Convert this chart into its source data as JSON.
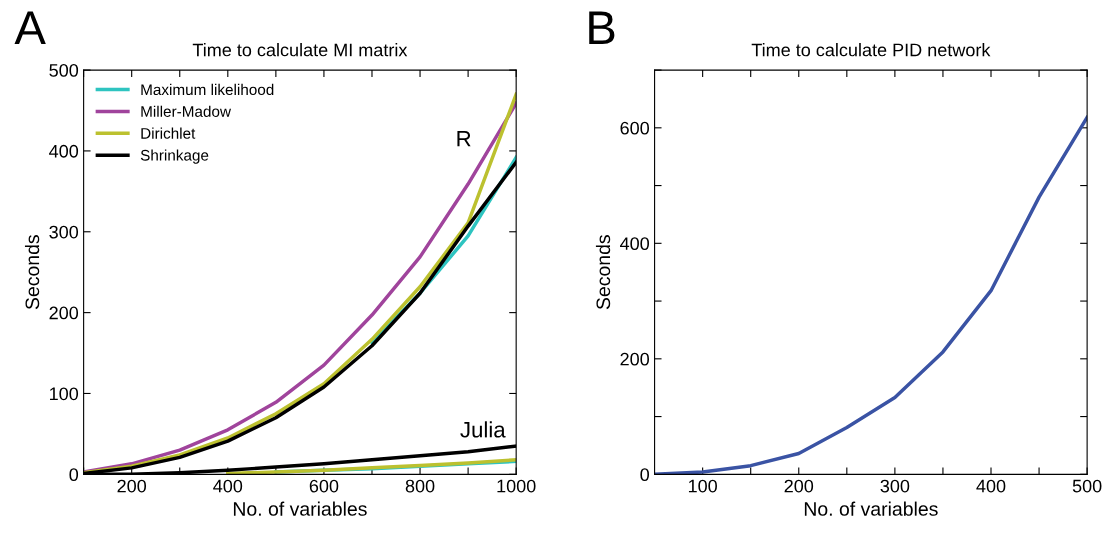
{
  "chart_data": [
    {
      "type": "line",
      "title": "Time to calculate MI matrix",
      "xlabel": "No. of variables",
      "ylabel": "Seconds",
      "x": [
        100,
        200,
        300,
        400,
        500,
        600,
        700,
        800,
        900,
        1000
      ],
      "series": [
        {
          "name": "Maximum likelihood",
          "color": "#2ec4c0",
          "values": [
            null,
            null,
            null,
            null,
            null,
            null,
            163,
            224,
            295,
            392
          ]
        },
        {
          "name": "Miller-Madow",
          "color": "#a0449c",
          "values": [
            3,
            13,
            30,
            55,
            89,
            135,
            197,
            269,
            359,
            459
          ]
        },
        {
          "name": "Dirichlet",
          "color": "#bcc12f",
          "values": [
            2,
            10,
            24,
            45,
            75,
            112,
            167,
            232,
            311,
            470
          ]
        },
        {
          "name": "Shrinkage",
          "color": "#000000",
          "values": [
            1,
            8,
            21,
            41,
            70,
            108,
            159,
            224,
            307,
            386
          ]
        },
        {
          "color": "#2ec4c0",
          "values": [
            null,
            null,
            null,
            null,
            3,
            5,
            7,
            10,
            13,
            16
          ]
        },
        {
          "color": "#bcc12f",
          "values": [
            null,
            null,
            null,
            1,
            3,
            5,
            8,
            11,
            14,
            18
          ]
        },
        {
          "color": "#000000",
          "values": [
            0,
            0,
            2,
            5,
            9,
            13,
            18,
            23,
            28,
            35
          ]
        }
      ],
      "xlim": [
        100,
        1000
      ],
      "xticks": [
        {
          "value": 100,
          "label": null
        },
        200,
        {
          "value": 300,
          "label": null
        },
        400,
        {
          "value": 500,
          "label": null
        },
        600,
        {
          "value": 700,
          "label": null
        },
        800,
        {
          "value": 900,
          "label": null
        },
        1000
      ],
      "ylim": [
        0,
        500
      ],
      "yticks": [
        0,
        100,
        200,
        300,
        400,
        500
      ],
      "legend": "top left",
      "grid": false,
      "annotations": [
        "A",
        "R",
        "Julia"
      ]
    },
    {
      "type": "line",
      "title": "Time to calculate PID network",
      "xlabel": "No. of variables",
      "ylabel": "Seconds",
      "x": [
        50,
        100,
        150,
        200,
        250,
        300,
        350,
        400,
        450,
        500
      ],
      "series": [
        {
          "color": "#3a53a4",
          "values": [
            0,
            4,
            15,
            36,
            81,
            133,
            212,
            318,
            480,
            618
          ]
        }
      ],
      "xlim": [
        50,
        500
      ],
      "xticks": [
        100,
        {
          "value": 150,
          "label": null
        },
        200,
        {
          "value": 250,
          "label": null
        },
        300,
        {
          "value": 350,
          "label": null
        },
        400,
        {
          "value": 450,
          "label": null
        },
        500
      ],
      "ylim": [
        0,
        700
      ],
      "yticks": [
        0,
        {
          "value": 100,
          "label": null
        },
        200,
        {
          "value": 300,
          "label": null
        },
        400,
        {
          "value": 500,
          "label": null
        },
        600,
        {
          "value": 700,
          "label": null
        }
      ],
      "grid": false,
      "annotations": [
        "B"
      ]
    }
  ]
}
